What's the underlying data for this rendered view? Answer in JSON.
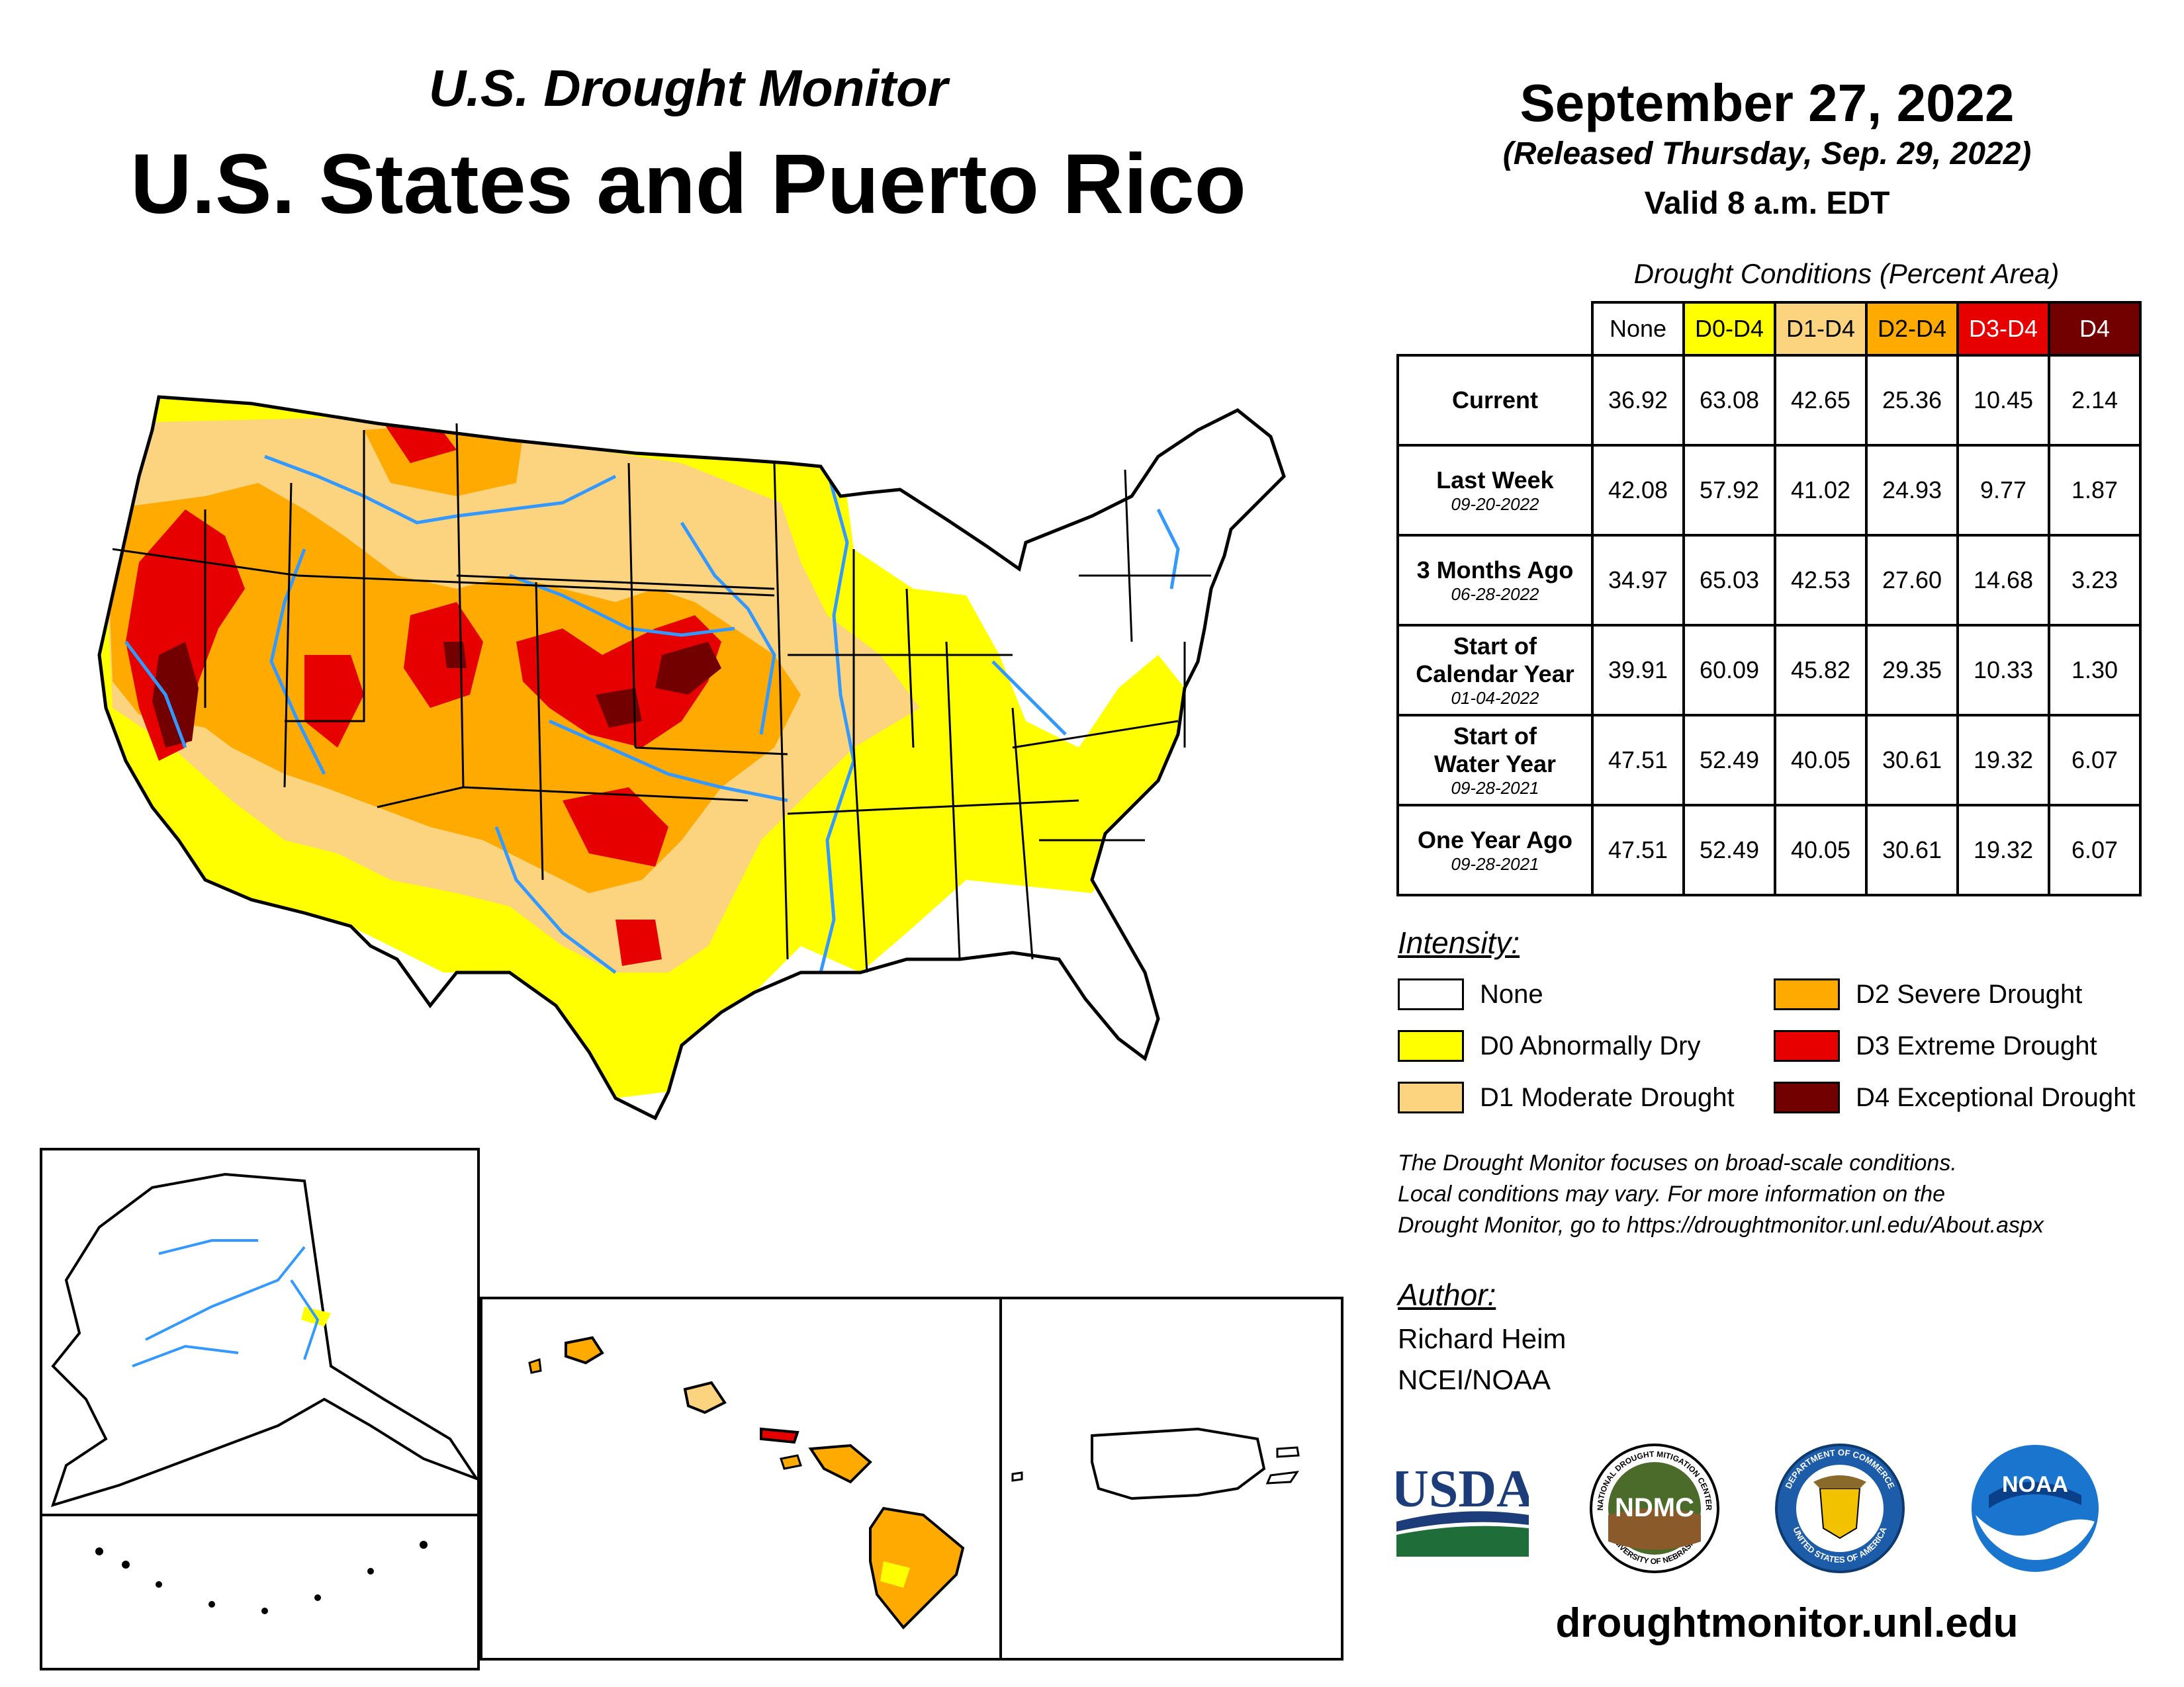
{
  "header": {
    "monitor_title": "U.S. Drought Monitor",
    "region_title": "U.S. States and Puerto Rico",
    "map_date": "September 27, 2022",
    "released": "(Released Thursday, Sep. 29, 2022)",
    "valid": "Valid 8 a.m. EDT"
  },
  "table": {
    "caption": "Drought Conditions (Percent Area)",
    "columns": [
      "None",
      "D0-D4",
      "D1-D4",
      "D2-D4",
      "D3-D4",
      "D4"
    ],
    "rows": [
      {
        "label": "Current",
        "sub": "",
        "values": [
          "36.92",
          "63.08",
          "42.65",
          "25.36",
          "10.45",
          "2.14"
        ]
      },
      {
        "label": "Last Week",
        "sub": "09-20-2022",
        "values": [
          "42.08",
          "57.92",
          "41.02",
          "24.93",
          "9.77",
          "1.87"
        ]
      },
      {
        "label": "3 Months Ago",
        "sub": "06-28-2022",
        "values": [
          "34.97",
          "65.03",
          "42.53",
          "27.60",
          "14.68",
          "3.23"
        ]
      },
      {
        "label_line1": "Start of",
        "label_line2": "Calendar Year",
        "sub": "01-04-2022",
        "values": [
          "39.91",
          "60.09",
          "45.82",
          "29.35",
          "10.33",
          "1.30"
        ]
      },
      {
        "label_line1": "Start of",
        "label_line2": "Water Year",
        "sub": "09-28-2021",
        "values": [
          "47.51",
          "52.49",
          "40.05",
          "30.61",
          "19.32",
          "6.07"
        ]
      },
      {
        "label": "One Year Ago",
        "sub": "09-28-2021",
        "values": [
          "47.51",
          "52.49",
          "40.05",
          "30.61",
          "19.32",
          "6.07"
        ]
      }
    ]
  },
  "legend": {
    "title": "Intensity:",
    "items": [
      {
        "label": "None",
        "color": "#ffffff"
      },
      {
        "label": "D0 Abnormally Dry",
        "color": "#ffff00"
      },
      {
        "label": "D1 Moderate Drought",
        "color": "#fcd37f"
      },
      {
        "label": "D2 Severe Drought",
        "color": "#ffaa00"
      },
      {
        "label": "D3 Extreme Drought",
        "color": "#e60000"
      },
      {
        "label": "D4 Exceptional Drought",
        "color": "#730000"
      }
    ]
  },
  "disclaimer": {
    "line1": "The Drought Monitor focuses on broad-scale conditions.",
    "line2": "Local conditions may vary. For more information on the",
    "line3": "Drought Monitor, go to https://droughtmonitor.unl.edu/About.aspx"
  },
  "author": {
    "title": "Author:",
    "name": "Richard Heim",
    "org": "NCEI/NOAA"
  },
  "logos": {
    "usda": "USDA",
    "ndmc": "NDMC",
    "ndmc_ring_top": "NATIONAL DROUGHT MITIGATION CENTER",
    "ndmc_ring_bottom": "UNIVERSITY OF NEBRASKA",
    "commerce_ring_top": "DEPARTMENT OF COMMERCE",
    "commerce_ring_bottom": "UNITED STATES OF AMERICA",
    "noaa": "NOAA"
  },
  "website": "droughtmonitor.unl.edu",
  "colors": {
    "none": "#ffffff",
    "d0": "#ffff00",
    "d1": "#fcd37f",
    "d2": "#ffaa00",
    "d3": "#e60000",
    "d4": "#730000",
    "water": "#3399ff"
  }
}
